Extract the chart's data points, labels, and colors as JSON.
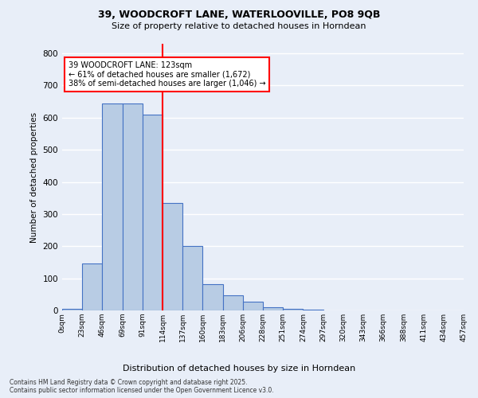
{
  "title_line1": "39, WOODCROFT LANE, WATERLOOVILLE, PO8 9QB",
  "title_line2": "Size of property relative to detached houses in Horndean",
  "xlabel": "Distribution of detached houses by size in Horndean",
  "ylabel": "Number of detached properties",
  "bar_color": "#b8cce4",
  "bar_edge_color": "#4472c4",
  "bin_labels": [
    "0sqm",
    "23sqm",
    "46sqm",
    "69sqm",
    "91sqm",
    "114sqm",
    "137sqm",
    "160sqm",
    "183sqm",
    "206sqm",
    "228sqm",
    "251sqm",
    "274sqm",
    "297sqm",
    "320sqm",
    "343sqm",
    "366sqm",
    "388sqm",
    "411sqm",
    "434sqm",
    "457sqm"
  ],
  "bar_heights": [
    5,
    145,
    645,
    645,
    610,
    335,
    200,
    83,
    46,
    28,
    11,
    5,
    2,
    0,
    0,
    0,
    0,
    0,
    0,
    0
  ],
  "ylim": [
    0,
    830
  ],
  "yticks": [
    0,
    100,
    200,
    300,
    400,
    500,
    600,
    700,
    800
  ],
  "vline_x": 5,
  "vline_color": "#ff0000",
  "annotation_text": "39 WOODCROFT LANE: 123sqm\n← 61% of detached houses are smaller (1,672)\n38% of semi-detached houses are larger (1,046) →",
  "annotation_box_color": "#ffffff",
  "annotation_box_edge": "#ff0000",
  "footnote": "Contains HM Land Registry data © Crown copyright and database right 2025.\nContains public sector information licensed under the Open Government Licence v3.0.",
  "bg_color": "#e8eef8",
  "plot_bg_color": "#e8eef8",
  "grid_color": "#ffffff"
}
